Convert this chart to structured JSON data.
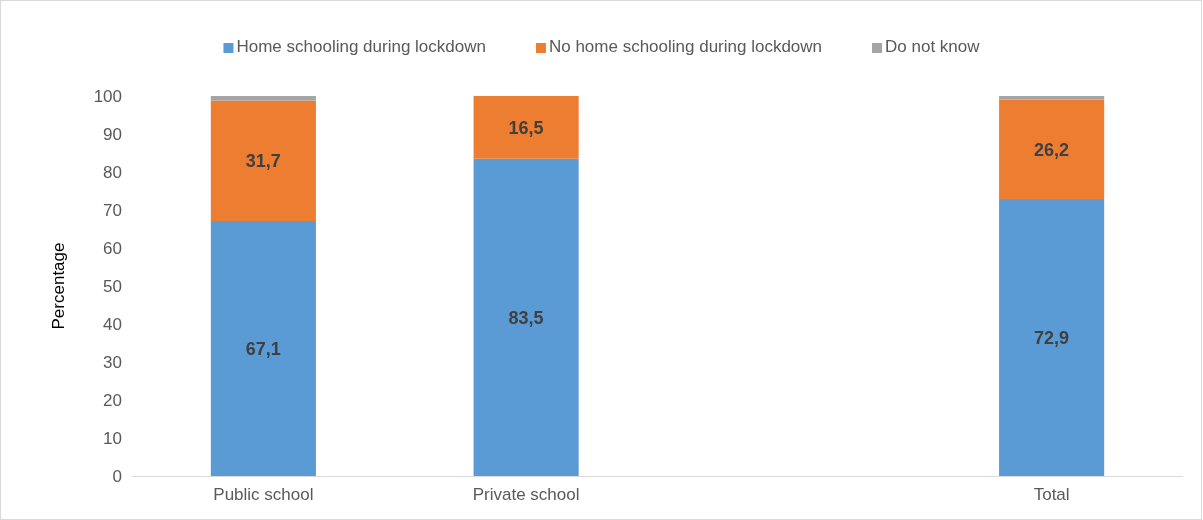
{
  "chart_data": {
    "type": "bar",
    "stacked": true,
    "ylabel": "Percentage",
    "categories": [
      "Public school",
      "Private school",
      null,
      "Total"
    ],
    "ylim": [
      0,
      100
    ],
    "yticks": [
      0,
      10,
      20,
      30,
      40,
      50,
      60,
      70,
      80,
      90,
      100
    ],
    "grid": false,
    "legend": "top",
    "series": [
      {
        "name": "Home schooling during lockdown",
        "color": "#5b9bd5",
        "values": [
          67.1,
          83.5,
          null,
          72.9
        ],
        "value_labels": [
          "67,1",
          "83,5",
          null,
          "72,9"
        ]
      },
      {
        "name": "No home schooling during lockdown",
        "color": "#ed7d31",
        "values": [
          31.7,
          16.5,
          null,
          26.2
        ],
        "value_labels": [
          "31,7",
          "16,5",
          null,
          "26,2"
        ]
      },
      {
        "name": "Do not know",
        "color": "#a5a5a5",
        "values": [
          1.2,
          0,
          null,
          0.9
        ]
      }
    ]
  }
}
